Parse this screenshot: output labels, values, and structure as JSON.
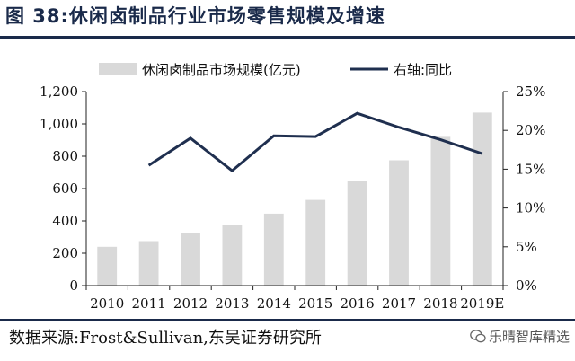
{
  "figure": {
    "title": "图 38:休闲卤制品行业市场零售规模及增速",
    "source": "数据来源:Frost&Sullivan,东吴证券研究所",
    "watermark": "乐晴智库精选"
  },
  "chart_data": {
    "type": "bar",
    "categories": [
      "2010",
      "2011",
      "2012",
      "2013",
      "2014",
      "2015",
      "2016",
      "2017",
      "2018",
      "2019E"
    ],
    "series": [
      {
        "name": "休闲卤制品市场规模(亿元)",
        "type": "bar",
        "axis": "left",
        "color": "#d9d9d9",
        "values": [
          240,
          275,
          325,
          375,
          445,
          530,
          645,
          775,
          920,
          1070
        ]
      },
      {
        "name": "右轴:同比",
        "type": "line",
        "axis": "right",
        "color": "#1f2f4f",
        "values": [
          null,
          15.5,
          19.0,
          14.8,
          19.3,
          19.2,
          22.2,
          20.4,
          18.8,
          17.0
        ]
      }
    ],
    "left_axis": {
      "ylim": [
        0,
        1200
      ],
      "ticks": [
        0,
        200,
        400,
        600,
        800,
        1000,
        1200
      ],
      "tick_labels": [
        "0",
        "200",
        "400",
        "600",
        "800",
        "1,000",
        "1,200"
      ]
    },
    "right_axis": {
      "ylim": [
        0,
        25
      ],
      "ticks": [
        0,
        5,
        10,
        15,
        20,
        25
      ],
      "tick_labels": [
        "0%",
        "5%",
        "10%",
        "15%",
        "20%",
        "25%"
      ]
    },
    "grid": false,
    "legend": "top"
  }
}
